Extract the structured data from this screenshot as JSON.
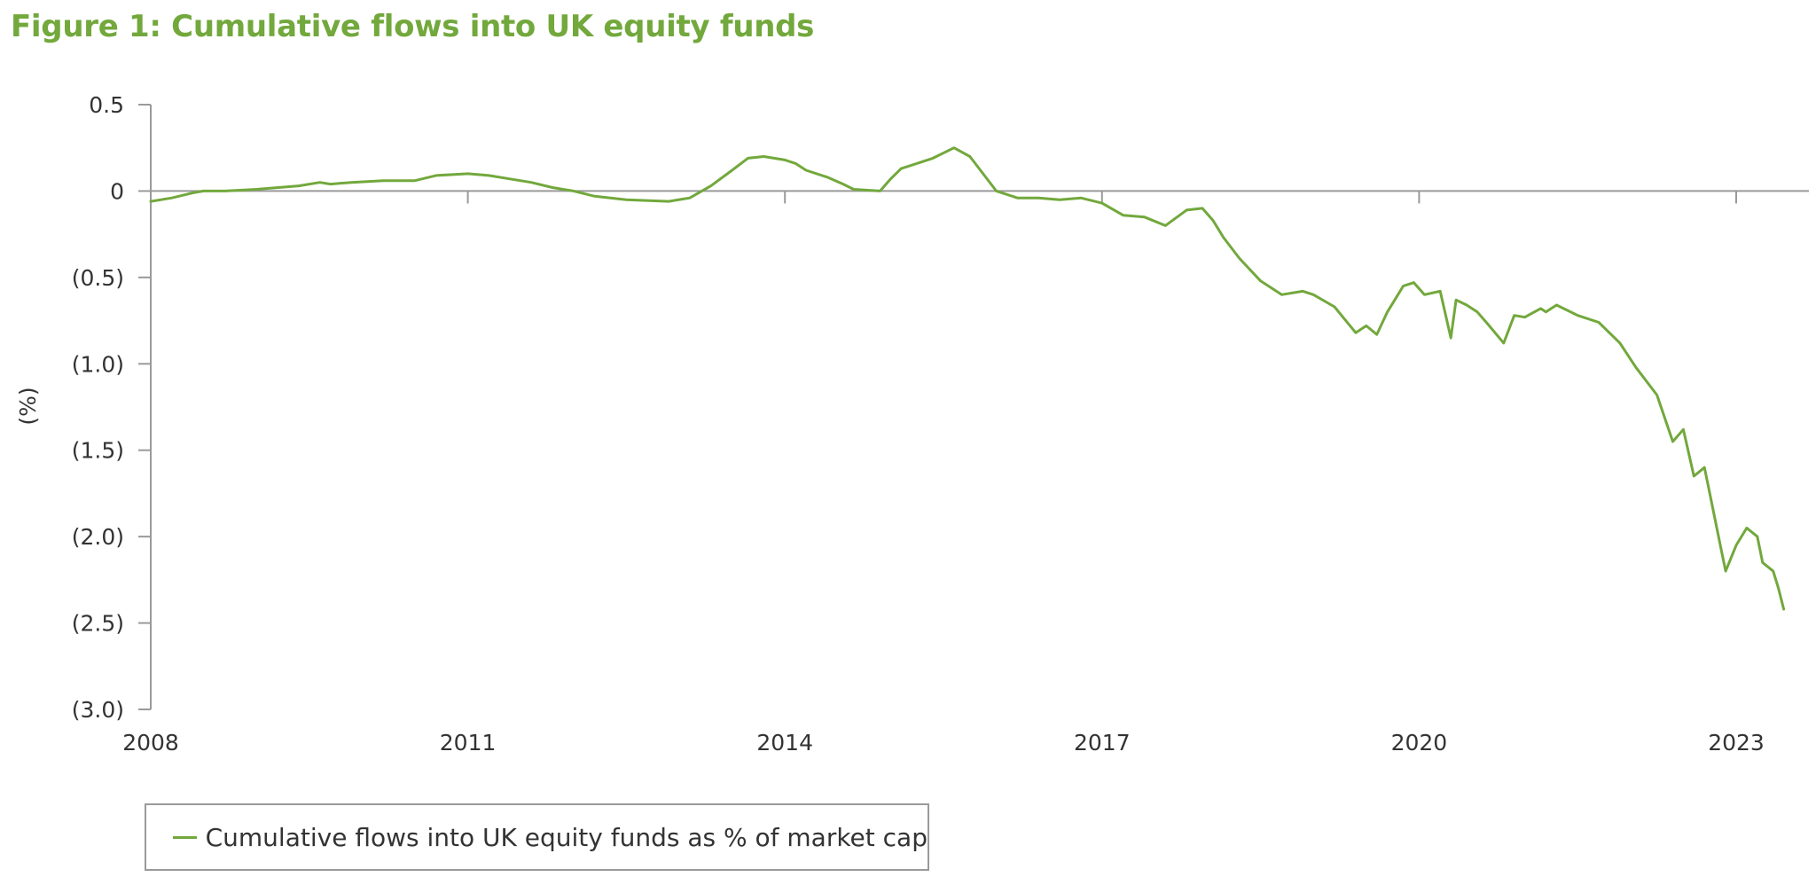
{
  "title": "Figure 1: Cumulative flows into UK equity funds",
  "colors": {
    "series": "#72a83c",
    "axis": "#9a9a9a",
    "text": "#333333",
    "title": "#72a83c"
  },
  "chart_data": {
    "type": "line",
    "ylabel": "(%)",
    "xlabel": "",
    "xlim": [
      2008,
      2023.6
    ],
    "ylim": [
      -3.0,
      0.5
    ],
    "xticks": [
      {
        "value": 2008,
        "label": "2008"
      },
      {
        "value": 2011,
        "label": "2011"
      },
      {
        "value": 2014,
        "label": "2014"
      },
      {
        "value": 2017,
        "label": "2017"
      },
      {
        "value": 2020,
        "label": "2020"
      },
      {
        "value": 2023,
        "label": "2023"
      }
    ],
    "yticks": [
      {
        "value": 0.5,
        "label": "0.5"
      },
      {
        "value": 0,
        "label": "0"
      },
      {
        "value": -0.5,
        "label": "(0.5)"
      },
      {
        "value": -1.0,
        "label": "(1.0)"
      },
      {
        "value": -1.5,
        "label": "(1.5)"
      },
      {
        "value": -2.0,
        "label": "(2.0)"
      },
      {
        "value": -2.5,
        "label": "(2.5)"
      },
      {
        "value": -3.0,
        "label": "(3.0)"
      }
    ],
    "legend_position": "bottom-left",
    "series": [
      {
        "name": "Cumulative flows into UK equity funds as % of market cap",
        "x": [
          2008.0,
          2008.2,
          2008.4,
          2008.5,
          2008.7,
          2009.0,
          2009.4,
          2009.6,
          2009.7,
          2009.9,
          2010.2,
          2010.5,
          2010.7,
          2011.0,
          2011.2,
          2011.4,
          2011.6,
          2011.8,
          2012.0,
          2012.2,
          2012.5,
          2012.9,
          2013.1,
          2013.3,
          2013.5,
          2013.65,
          2013.8,
          2014.0,
          2014.1,
          2014.2,
          2014.4,
          2014.55,
          2014.65,
          2014.9,
          2015.0,
          2015.1,
          2015.25,
          2015.4,
          2015.6,
          2015.75,
          2015.85,
          2016.0,
          2016.2,
          2016.4,
          2016.6,
          2016.8,
          2017.0,
          2017.2,
          2017.4,
          2017.6,
          2017.8,
          2017.95,
          2018.05,
          2018.15,
          2018.3,
          2018.5,
          2018.7,
          2018.9,
          2019.0,
          2019.2,
          2019.4,
          2019.5,
          2019.6,
          2019.7,
          2019.75,
          2019.85,
          2019.95,
          2020.05,
          2020.2,
          2020.3,
          2020.35,
          2020.45,
          2020.55,
          2020.65,
          2020.8,
          2020.9,
          2021.0,
          2021.15,
          2021.2,
          2021.3,
          2021.5,
          2021.7,
          2021.9,
          2022.05,
          2022.25,
          2022.4,
          2022.5,
          2022.6,
          2022.7,
          2022.75,
          2022.85,
          2022.9,
          2023.0,
          2023.1,
          2023.2,
          2023.25,
          2023.35,
          2023.4,
          2023.45
        ],
        "values": [
          -0.06,
          -0.04,
          -0.01,
          0.0,
          0.0,
          0.01,
          0.03,
          0.05,
          0.04,
          0.05,
          0.06,
          0.06,
          0.09,
          0.1,
          0.09,
          0.07,
          0.05,
          0.02,
          0.0,
          -0.03,
          -0.05,
          -0.06,
          -0.04,
          0.03,
          0.12,
          0.19,
          0.2,
          0.18,
          0.16,
          0.12,
          0.08,
          0.04,
          0.01,
          0.0,
          0.07,
          0.13,
          0.16,
          0.19,
          0.25,
          0.2,
          0.12,
          0.0,
          -0.04,
          -0.04,
          -0.05,
          -0.04,
          -0.07,
          -0.14,
          -0.15,
          -0.2,
          -0.11,
          -0.1,
          -0.17,
          -0.27,
          -0.39,
          -0.52,
          -0.6,
          -0.58,
          -0.6,
          -0.67,
          -0.82,
          -0.78,
          -0.83,
          -0.7,
          -0.65,
          -0.55,
          -0.53,
          -0.6,
          -0.58,
          -0.85,
          -0.63,
          -0.66,
          -0.7,
          -0.77,
          -0.88,
          -0.72,
          -0.73,
          -0.68,
          -0.7,
          -0.66,
          -0.72,
          -0.76,
          -0.88,
          -1.02,
          -1.18,
          -1.45,
          -1.38,
          -1.65,
          -1.6,
          -1.75,
          -2.05,
          -2.2,
          -2.05,
          -1.95,
          -2.0,
          -2.15,
          -2.2,
          -2.3,
          -2.42
        ]
      }
    ]
  }
}
